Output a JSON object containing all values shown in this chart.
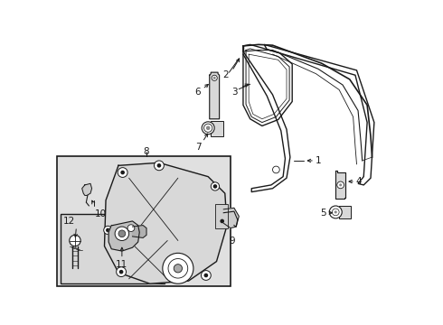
{
  "bg_color": "#ffffff",
  "line_color": "#1a1a1a",
  "box_bg": "#e0e0e0",
  "inner_box_bg": "#d8d8d8",
  "fig_width": 4.9,
  "fig_height": 3.6,
  "dpi": 100
}
